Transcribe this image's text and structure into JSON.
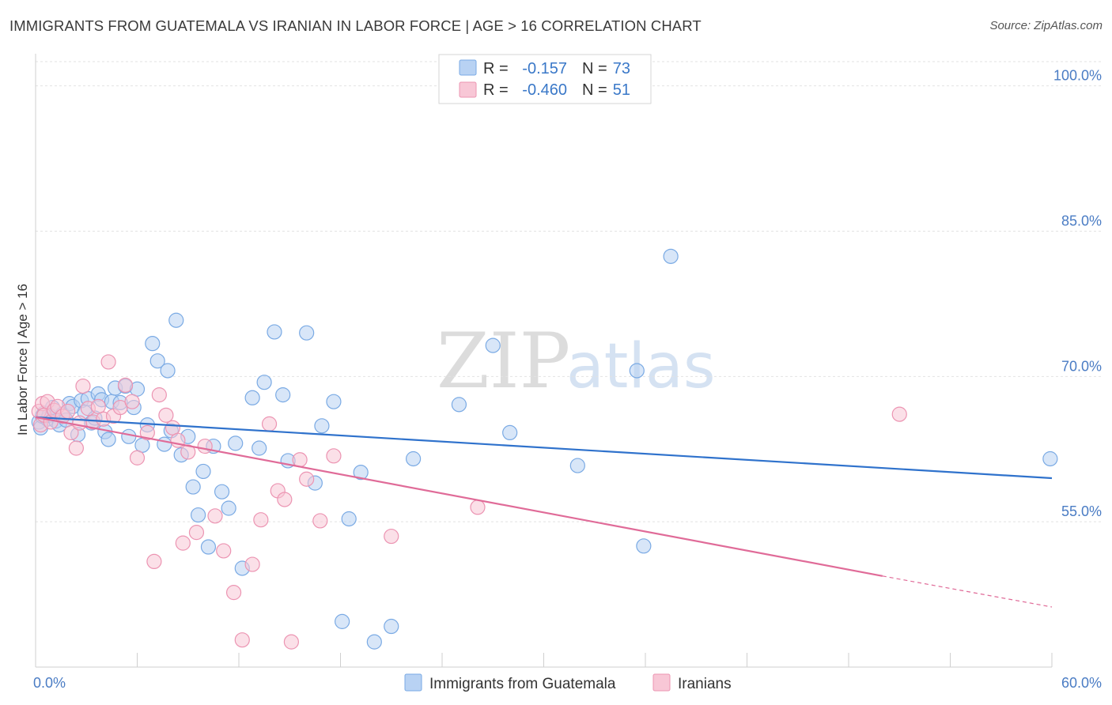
{
  "title": "IMMIGRANTS FROM GUATEMALA VS IRANIAN IN LABOR FORCE | AGE > 16 CORRELATION CHART",
  "source": "Source: ZipAtlas.com",
  "watermark": {
    "part1": "ZIP",
    "part2": "atlas"
  },
  "colors": {
    "blue_fill": "#b8d2f3",
    "blue_stroke": "#7aaae4",
    "blue_line": "#2f72cc",
    "pink_fill": "#f8c7d6",
    "pink_stroke": "#ec94b2",
    "pink_line": "#e06b98",
    "grid": "#e2e2e2",
    "tick_label": "#4a7cc4"
  },
  "legend": {
    "rows": [
      {
        "r_label": "R =",
        "r_value": "-0.157",
        "n_label": "N =",
        "n_value": "73"
      },
      {
        "r_label": "R =",
        "r_value": "-0.460",
        "n_label": "N =",
        "n_value": "51"
      }
    ]
  },
  "chart_data": {
    "type": "scatter",
    "ylabel": "In Labor Force | Age > 16",
    "xlim": [
      0,
      60
    ],
    "ylim": [
      40,
      102.5
    ],
    "y_ticks": [
      {
        "value": 55,
        "label": "55.0%"
      },
      {
        "value": 70,
        "label": "70.0%"
      },
      {
        "value": 85,
        "label": "85.0%"
      },
      {
        "value": 100,
        "label": "100.0%"
      }
    ],
    "x_ticks": [
      {
        "value": 0,
        "label": "0.0%"
      },
      {
        "value": 60,
        "label": "60.0%"
      }
    ],
    "grid": true,
    "legend_position": "top-center",
    "series": [
      {
        "name": "Immigrants from Guatemala",
        "color": "#7aaae4",
        "trend": {
          "x0": 0,
          "y0": 65.8,
          "x1": 60,
          "y1": 59.5
        },
        "points": [
          [
            0.2,
            65.3
          ],
          [
            0.3,
            64.7
          ],
          [
            0.4,
            65.9
          ],
          [
            0.5,
            66.2
          ],
          [
            0.7,
            65.6
          ],
          [
            0.8,
            66.0
          ],
          [
            1.0,
            66.8
          ],
          [
            1.2,
            65.4
          ],
          [
            1.4,
            65.0
          ],
          [
            1.6,
            66.1
          ],
          [
            1.8,
            65.5
          ],
          [
            2.0,
            67.2
          ],
          [
            2.2,
            66.9
          ],
          [
            2.5,
            64.0
          ],
          [
            2.7,
            67.5
          ],
          [
            2.9,
            66.3
          ],
          [
            3.1,
            67.7
          ],
          [
            3.3,
            65.2
          ],
          [
            3.5,
            65.7
          ],
          [
            3.7,
            68.2
          ],
          [
            3.9,
            67.6
          ],
          [
            4.1,
            64.3
          ],
          [
            4.3,
            63.5
          ],
          [
            4.5,
            67.4
          ],
          [
            4.7,
            68.8
          ],
          [
            5.0,
            67.3
          ],
          [
            5.3,
            69.0
          ],
          [
            5.5,
            63.8
          ],
          [
            5.8,
            66.8
          ],
          [
            6.0,
            68.7
          ],
          [
            6.3,
            62.9
          ],
          [
            6.6,
            65.0
          ],
          [
            6.9,
            73.4
          ],
          [
            7.2,
            71.6
          ],
          [
            7.6,
            63.0
          ],
          [
            7.8,
            70.6
          ],
          [
            8.0,
            64.4
          ],
          [
            8.3,
            75.8
          ],
          [
            8.6,
            61.9
          ],
          [
            9.0,
            63.8
          ],
          [
            9.3,
            58.6
          ],
          [
            9.6,
            55.7
          ],
          [
            9.9,
            60.2
          ],
          [
            10.2,
            52.4
          ],
          [
            10.5,
            62.8
          ],
          [
            11.0,
            58.1
          ],
          [
            11.4,
            56.4
          ],
          [
            11.8,
            63.1
          ],
          [
            12.2,
            50.2
          ],
          [
            12.8,
            67.8
          ],
          [
            13.2,
            62.6
          ],
          [
            13.5,
            69.4
          ],
          [
            14.1,
            74.6
          ],
          [
            14.6,
            68.1
          ],
          [
            14.9,
            61.3
          ],
          [
            16.0,
            74.5
          ],
          [
            16.5,
            59.0
          ],
          [
            16.9,
            64.9
          ],
          [
            17.6,
            67.4
          ],
          [
            18.1,
            44.7
          ],
          [
            18.5,
            55.3
          ],
          [
            19.2,
            60.1
          ],
          [
            20.0,
            42.6
          ],
          [
            21.0,
            44.2
          ],
          [
            22.3,
            61.5
          ],
          [
            25.0,
            67.1
          ],
          [
            27.0,
            73.2
          ],
          [
            28.0,
            64.2
          ],
          [
            32.0,
            60.8
          ],
          [
            35.5,
            70.6
          ],
          [
            35.9,
            52.5
          ],
          [
            37.5,
            82.4
          ],
          [
            59.9,
            61.5
          ]
        ]
      },
      {
        "name": "Iranians",
        "color": "#ec94b2",
        "trend": {
          "x0": 0,
          "y0": 65.8,
          "x1": 50,
          "y1": 49.4,
          "dashed_to_x": 60,
          "dashed_to_y": 46.2
        },
        "points": [
          [
            0.2,
            66.4
          ],
          [
            0.3,
            65.0
          ],
          [
            0.4,
            67.2
          ],
          [
            0.5,
            66.0
          ],
          [
            0.7,
            67.4
          ],
          [
            0.9,
            65.3
          ],
          [
            1.1,
            66.5
          ],
          [
            1.3,
            66.9
          ],
          [
            1.6,
            65.9
          ],
          [
            1.9,
            66.4
          ],
          [
            2.1,
            64.2
          ],
          [
            2.4,
            62.6
          ],
          [
            2.6,
            65.2
          ],
          [
            2.8,
            69.0
          ],
          [
            3.1,
            66.7
          ],
          [
            3.4,
            65.3
          ],
          [
            3.7,
            66.9
          ],
          [
            4.0,
            65.6
          ],
          [
            4.3,
            71.5
          ],
          [
            4.6,
            65.9
          ],
          [
            5.0,
            66.8
          ],
          [
            5.3,
            69.1
          ],
          [
            5.7,
            67.4
          ],
          [
            6.0,
            61.6
          ],
          [
            6.6,
            64.2
          ],
          [
            7.0,
            50.9
          ],
          [
            7.3,
            68.1
          ],
          [
            7.7,
            66.0
          ],
          [
            8.1,
            64.7
          ],
          [
            8.4,
            63.4
          ],
          [
            8.7,
            52.8
          ],
          [
            9.0,
            62.2
          ],
          [
            9.5,
            53.9
          ],
          [
            10.0,
            62.8
          ],
          [
            10.6,
            55.6
          ],
          [
            11.1,
            52.0
          ],
          [
            11.7,
            47.7
          ],
          [
            12.2,
            42.8
          ],
          [
            12.8,
            50.6
          ],
          [
            13.3,
            55.2
          ],
          [
            13.8,
            65.1
          ],
          [
            14.3,
            58.2
          ],
          [
            14.7,
            57.3
          ],
          [
            15.1,
            42.6
          ],
          [
            15.6,
            61.4
          ],
          [
            16.0,
            59.4
          ],
          [
            16.8,
            55.1
          ],
          [
            17.6,
            61.8
          ],
          [
            21.0,
            53.5
          ],
          [
            26.1,
            56.5
          ],
          [
            51.0,
            66.1
          ]
        ]
      }
    ]
  }
}
